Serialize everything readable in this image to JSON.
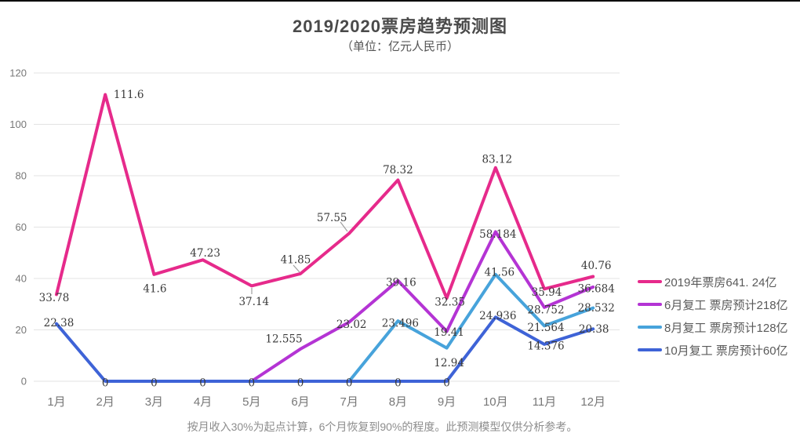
{
  "header": {
    "title": "2019/2020票房趋势预测图",
    "subtitle": "（单位：亿元人民币）"
  },
  "footer": {
    "note": "按月收入30%为起点计算，6个月恢复到90%的程度。此预测模型仅供分析参考。"
  },
  "chart_data": {
    "type": "line",
    "title": "2019/2020票房趋势预测图",
    "subtitle": "（单位：亿元人民币）",
    "categories": [
      "1月",
      "2月",
      "3月",
      "4月",
      "5月",
      "6月",
      "7月",
      "8月",
      "9月",
      "10月",
      "11月",
      "12月"
    ],
    "y_axis": {
      "min": 0,
      "max": 120,
      "ticks": [
        0,
        20,
        40,
        60,
        80,
        100,
        120
      ]
    },
    "grid": true,
    "legend_position": "right",
    "series": [
      {
        "name": "2019年票房641. 24亿",
        "color": "#E62A8B",
        "values": [
          33.78,
          111.6,
          41.6,
          47.23,
          37.14,
          41.85,
          57.55,
          78.32,
          32.35,
          83.12,
          35.94,
          40.76
        ],
        "labels": [
          "33.78",
          "111.6",
          "41.6",
          "47.23",
          "37.14",
          "41.85",
          "57.55",
          "78.32",
          "32.35",
          "83.12",
          "35.94",
          "40.76"
        ]
      },
      {
        "name": "6月复工 票房预计218亿",
        "color": "#B434D4",
        "values": [
          null,
          null,
          null,
          null,
          0,
          12.555,
          23.02,
          39.16,
          19.41,
          58.184,
          28.752,
          36.684
        ],
        "labels": [
          null,
          null,
          null,
          null,
          null,
          "12.555",
          "23.02",
          "39.16",
          "19.41",
          "58.184",
          "28.752",
          "36.684"
        ]
      },
      {
        "name": "8月复工 票房预计128亿",
        "color": "#47A3DB",
        "values": [
          null,
          null,
          null,
          null,
          null,
          null,
          0,
          23.496,
          12.94,
          41.56,
          21.564,
          28.532
        ],
        "labels": [
          null,
          null,
          null,
          null,
          null,
          null,
          null,
          "23.496",
          "12.94",
          "41.56",
          "21.564",
          "28.532"
        ]
      },
      {
        "name": "10月复工 票房预计60亿",
        "color": "#3E63D7",
        "values": [
          22.38,
          0,
          0,
          0,
          0,
          0,
          0,
          0,
          0,
          24.936,
          14.376,
          20.38
        ],
        "labels": [
          "22.38",
          "0",
          "0",
          "0",
          "0",
          "0",
          "0",
          "0",
          "0",
          "24.936",
          "14.376",
          "20.38"
        ]
      }
    ]
  }
}
